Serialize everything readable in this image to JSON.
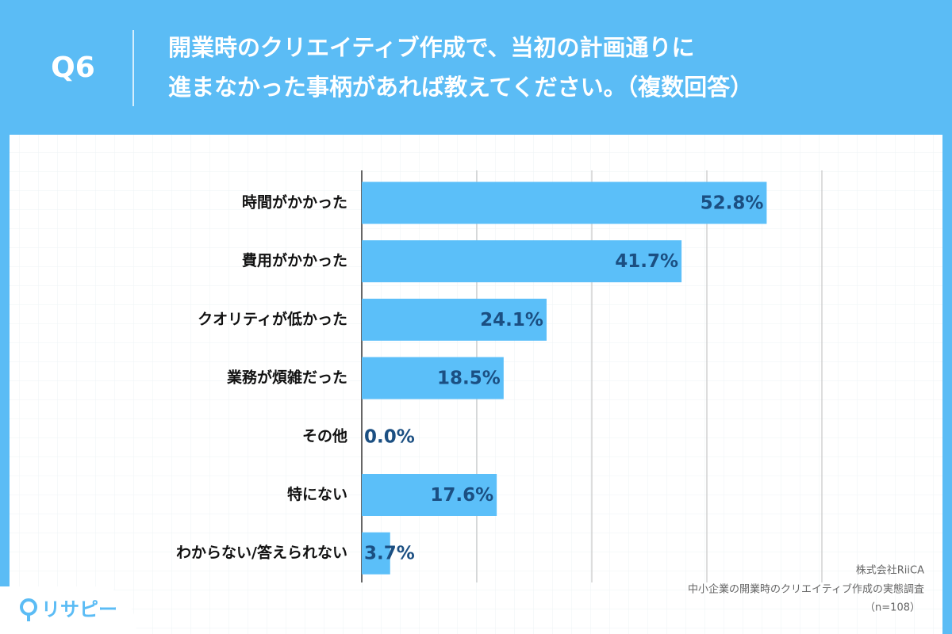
{
  "header": {
    "question": "Q6",
    "title_lines": [
      "開業時のクリエイティブ作成で、当初の計画通りに",
      "進まなかった事柄があれば教えてください。（複数回答）"
    ]
  },
  "chart_data": {
    "type": "bar",
    "orientation": "horizontal",
    "categories": [
      "時間がかかった",
      "費用がかかった",
      "クオリティが低かった",
      "業務が煩雑だった",
      "その他",
      "特にない",
      "わからない/答えられない"
    ],
    "values": [
      52.8,
      41.7,
      24.1,
      18.5,
      0.0,
      17.6,
      3.7
    ],
    "value_labels": [
      "52.8%",
      "41.7%",
      "24.1%",
      "18.5%",
      "0.0%",
      "17.6%",
      "3.7%"
    ],
    "color": "#5bbff9",
    "xlim": [
      0,
      60
    ],
    "xticks": [
      0,
      15,
      30,
      45,
      60
    ],
    "grid": true
  },
  "footer": {
    "source_lines": [
      "株式会社RiiCA",
      "中小企業の開業時のクリエイティブ作成の実態調査",
      "（n=108）"
    ],
    "logo": "リサピー"
  }
}
